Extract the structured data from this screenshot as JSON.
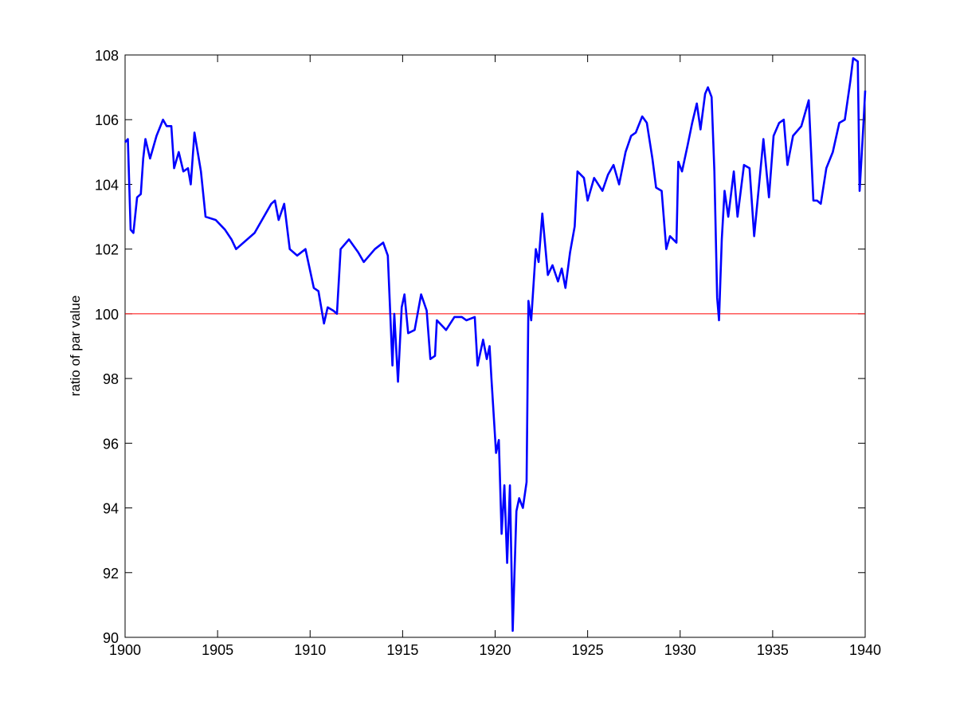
{
  "chart_data": {
    "type": "line",
    "ylabel": "ratio of par value",
    "x": [
      1900.0,
      1900.15,
      1900.3,
      1900.45,
      1900.65,
      1900.85,
      1900.98,
      1901.1,
      1901.35,
      1901.7,
      1902.05,
      1902.25,
      1902.5,
      1902.65,
      1902.9,
      1903.15,
      1903.4,
      1903.55,
      1903.75,
      1904.1,
      1904.35,
      1904.9,
      1905.4,
      1905.75,
      1906.0,
      1907.0,
      1907.9,
      1908.1,
      1908.3,
      1908.6,
      1908.9,
      1909.3,
      1909.75,
      1910.2,
      1910.45,
      1910.75,
      1910.95,
      1911.25,
      1911.45,
      1911.65,
      1912.1,
      1912.6,
      1912.9,
      1913.5,
      1913.95,
      1914.2,
      1914.45,
      1914.55,
      1914.75,
      1914.95,
      1915.1,
      1915.3,
      1915.65,
      1916.0,
      1916.3,
      1916.5,
      1916.75,
      1916.85,
      1917.35,
      1917.8,
      1918.2,
      1918.45,
      1918.9,
      1919.05,
      1919.35,
      1919.55,
      1919.7,
      1919.8,
      1920.05,
      1920.2,
      1920.35,
      1920.5,
      1920.65,
      1920.8,
      1920.95,
      1921.15,
      1921.3,
      1921.5,
      1921.7,
      1921.8,
      1921.95,
      1922.2,
      1922.35,
      1922.55,
      1922.85,
      1923.1,
      1923.4,
      1923.6,
      1923.8,
      1924.05,
      1924.3,
      1924.45,
      1924.8,
      1925.0,
      1925.35,
      1925.8,
      1926.1,
      1926.4,
      1926.7,
      1927.05,
      1927.35,
      1927.6,
      1927.95,
      1928.2,
      1928.5,
      1928.7,
      1929.0,
      1929.25,
      1929.45,
      1929.8,
      1929.9,
      1930.1,
      1930.4,
      1930.65,
      1930.9,
      1931.1,
      1931.35,
      1931.5,
      1931.7,
      1931.85,
      1932.0,
      1932.1,
      1932.25,
      1932.4,
      1932.6,
      1932.9,
      1933.1,
      1933.45,
      1933.75,
      1934.0,
      1934.2,
      1934.5,
      1934.8,
      1935.05,
      1935.35,
      1935.6,
      1935.8,
      1936.1,
      1936.55,
      1936.95,
      1937.2,
      1937.4,
      1937.6,
      1937.9,
      1938.25,
      1938.6,
      1938.9,
      1939.2,
      1939.35,
      1939.6,
      1939.7,
      1939.9,
      1940.0
    ],
    "series": [
      {
        "color": "#0000ff",
        "values": [
          105.3,
          105.4,
          102.6,
          102.5,
          103.6,
          103.7,
          104.8,
          105.4,
          104.8,
          105.5,
          106.0,
          105.8,
          105.8,
          104.5,
          105.0,
          104.4,
          104.5,
          104.0,
          105.6,
          104.4,
          103.0,
          102.9,
          102.6,
          102.3,
          102.0,
          102.5,
          103.4,
          103.5,
          102.9,
          103.4,
          102.0,
          101.8,
          102.0,
          100.8,
          100.7,
          99.7,
          100.2,
          100.1,
          100.0,
          102.0,
          102.3,
          101.9,
          101.6,
          102.0,
          102.2,
          101.8,
          98.4,
          100.0,
          97.9,
          100.2,
          100.6,
          99.4,
          99.5,
          100.6,
          100.1,
          98.6,
          98.7,
          99.8,
          99.5,
          99.9,
          99.9,
          99.8,
          99.9,
          98.4,
          99.2,
          98.6,
          99.0,
          98.0,
          95.7,
          96.1,
          93.2,
          94.7,
          92.3,
          94.7,
          90.2,
          93.9,
          94.3,
          94.0,
          94.8,
          100.4,
          99.8,
          102.0,
          101.6,
          103.1,
          101.2,
          101.5,
          101.0,
          101.4,
          100.8,
          101.9,
          102.7,
          104.4,
          104.2,
          103.5,
          104.2,
          103.8,
          104.3,
          104.6,
          104.0,
          105.0,
          105.5,
          105.6,
          106.1,
          105.9,
          104.8,
          103.9,
          103.8,
          102.0,
          102.4,
          102.2,
          104.7,
          104.4,
          105.2,
          105.9,
          106.5,
          105.7,
          106.8,
          107.0,
          106.7,
          104.4,
          100.5,
          99.8,
          102.3,
          103.8,
          103.0,
          104.4,
          103.0,
          104.6,
          104.5,
          102.4,
          103.6,
          105.4,
          103.6,
          105.5,
          105.9,
          106.0,
          104.6,
          105.5,
          105.8,
          106.6,
          103.5,
          103.5,
          103.4,
          104.5,
          105.0,
          105.9,
          106.0,
          107.2,
          107.9,
          107.8,
          103.8,
          105.8,
          106.9
        ]
      }
    ],
    "hline": {
      "value": 100,
      "color": "#ff0000"
    },
    "xlim": [
      1900,
      1940
    ],
    "xticks": [
      1900,
      1905,
      1910,
      1915,
      1920,
      1925,
      1930,
      1935,
      1940
    ],
    "ylim": [
      90,
      108
    ],
    "yticks": [
      90,
      92,
      94,
      96,
      98,
      100,
      102,
      104,
      106,
      108
    ]
  }
}
